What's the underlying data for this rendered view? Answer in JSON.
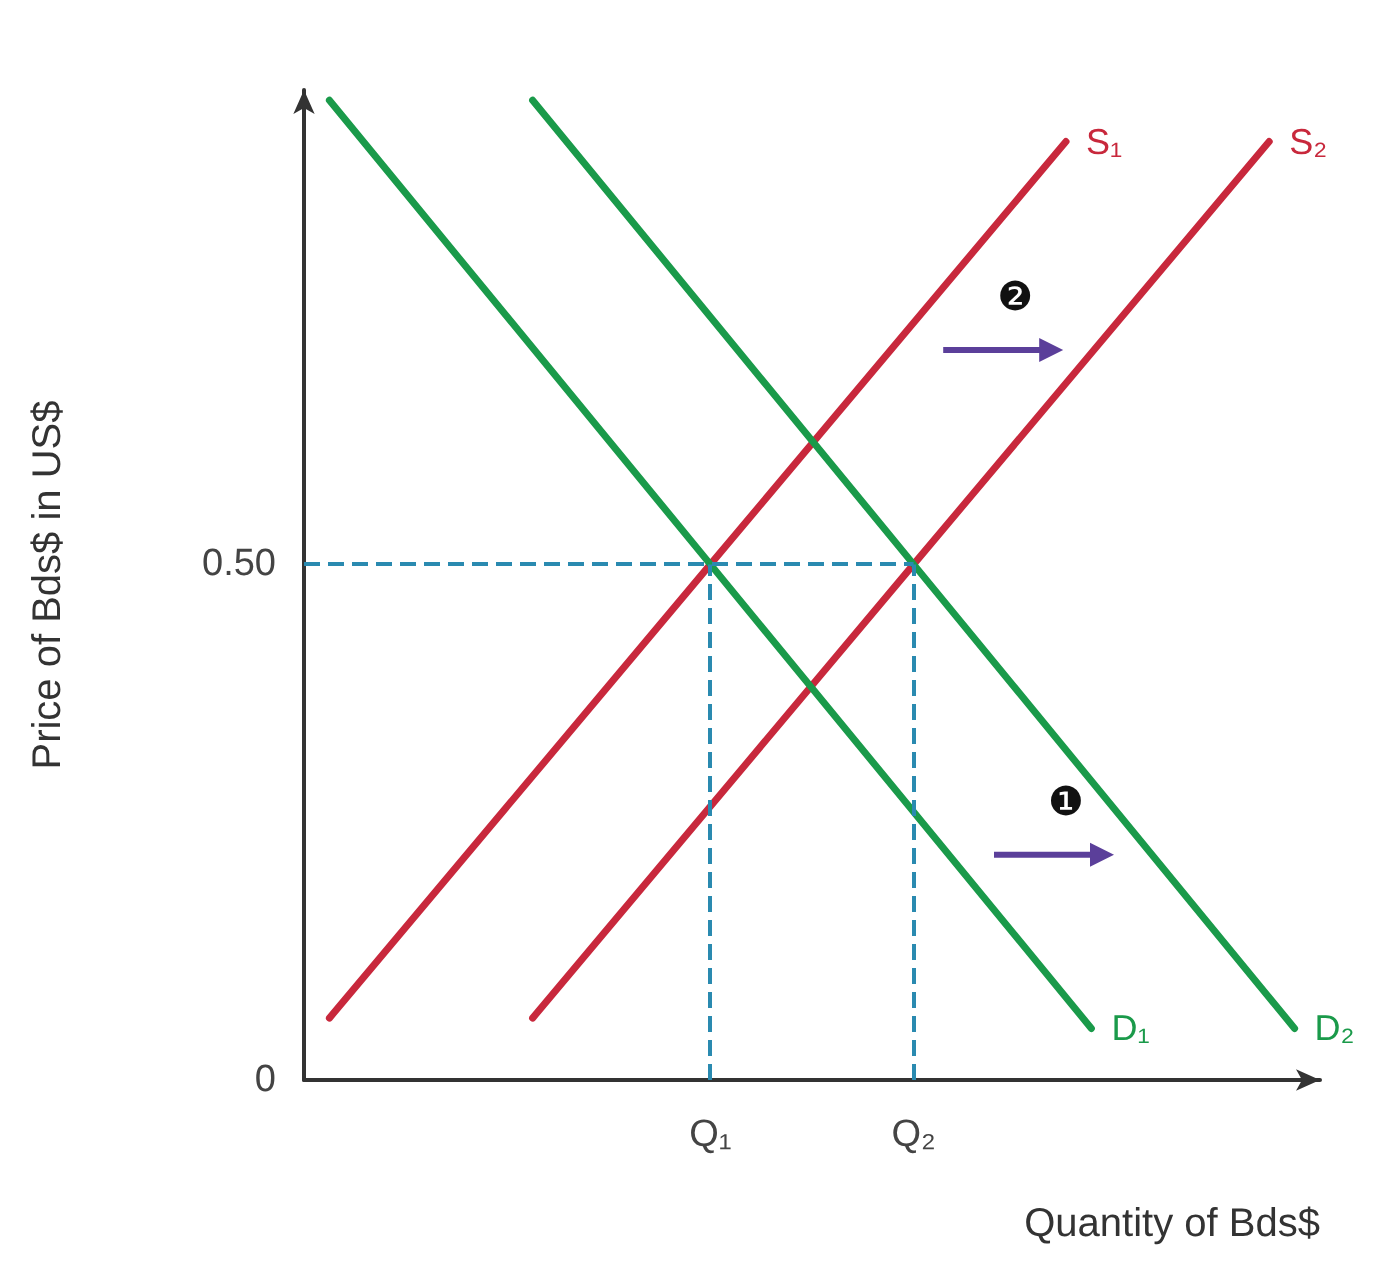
{
  "chart_data": {
    "type": "line",
    "xlabel": "Quantity of Bds$",
    "ylabel": "Price of Bds$ in US$",
    "categories": [
      null,
      null,
      null,
      null,
      null,
      null,
      null,
      null,
      null,
      null,
      null,
      null,
      null,
      null,
      null,
      null,
      "Q₁",
      null,
      null,
      null,
      null,
      null,
      null,
      null,
      "Q₂",
      null,
      null,
      null,
      null,
      null,
      null,
      null,
      null,
      null,
      null,
      null,
      null,
      null,
      null,
      null,
      null
    ],
    "ylim": [
      0,
      0.96
    ],
    "yticks": [
      {
        "value": 0,
        "label": "0"
      },
      {
        "value": 0.5,
        "label": "0.50"
      }
    ],
    "marker": "none",
    "legend": false,
    "grid": false,
    "series": [
      {
        "name": "S₁",
        "color": "#c8283c",
        "values": [
          null,
          0.06,
          null,
          null,
          null,
          null,
          null,
          null,
          null,
          null,
          null,
          null,
          null,
          null,
          null,
          null,
          0.5,
          null,
          null,
          null,
          null,
          null,
          null,
          null,
          null,
          null,
          null,
          null,
          null,
          null,
          0.91,
          null,
          null,
          null,
          null,
          null,
          null,
          null,
          null,
          null,
          null
        ]
      },
      {
        "name": "S₂",
        "color": "#c8283c",
        "values": [
          null,
          null,
          null,
          null,
          null,
          null,
          null,
          null,
          null,
          0.06,
          null,
          null,
          null,
          null,
          null,
          null,
          null,
          null,
          null,
          null,
          null,
          null,
          null,
          null,
          0.5,
          null,
          null,
          null,
          null,
          null,
          null,
          null,
          null,
          null,
          null,
          null,
          null,
          null,
          0.91,
          null,
          null
        ]
      },
      {
        "name": "D₁",
        "color": "#1a9a4a",
        "values": [
          null,
          0.95,
          null,
          null,
          null,
          null,
          null,
          null,
          null,
          null,
          null,
          null,
          null,
          null,
          null,
          null,
          0.5,
          null,
          null,
          null,
          null,
          null,
          null,
          null,
          null,
          null,
          null,
          null,
          null,
          null,
          null,
          0.05,
          null,
          null,
          null,
          null,
          null,
          null,
          null,
          null,
          null
        ]
      },
      {
        "name": "D₂",
        "color": "#1a9a4a",
        "values": [
          null,
          null,
          null,
          null,
          null,
          null,
          null,
          null,
          null,
          0.95,
          null,
          null,
          null,
          null,
          null,
          null,
          null,
          null,
          null,
          null,
          null,
          null,
          null,
          null,
          0.5,
          null,
          null,
          null,
          null,
          null,
          null,
          null,
          null,
          null,
          null,
          null,
          null,
          null,
          null,
          0.05,
          null
        ]
      }
    ],
    "ref_lines": [
      {
        "axis": "y",
        "value": 0.5,
        "color": "#2a8ab0",
        "line_style": "dashed"
      },
      {
        "axis": "x",
        "value": "Q₁",
        "color": "#2a8ab0",
        "line_style": "dashed"
      },
      {
        "axis": "x",
        "value": "Q₂",
        "color": "#2a8ab0",
        "line_style": "dashed"
      }
    ],
    "annotations": [
      "❷",
      "❶"
    ]
  }
}
